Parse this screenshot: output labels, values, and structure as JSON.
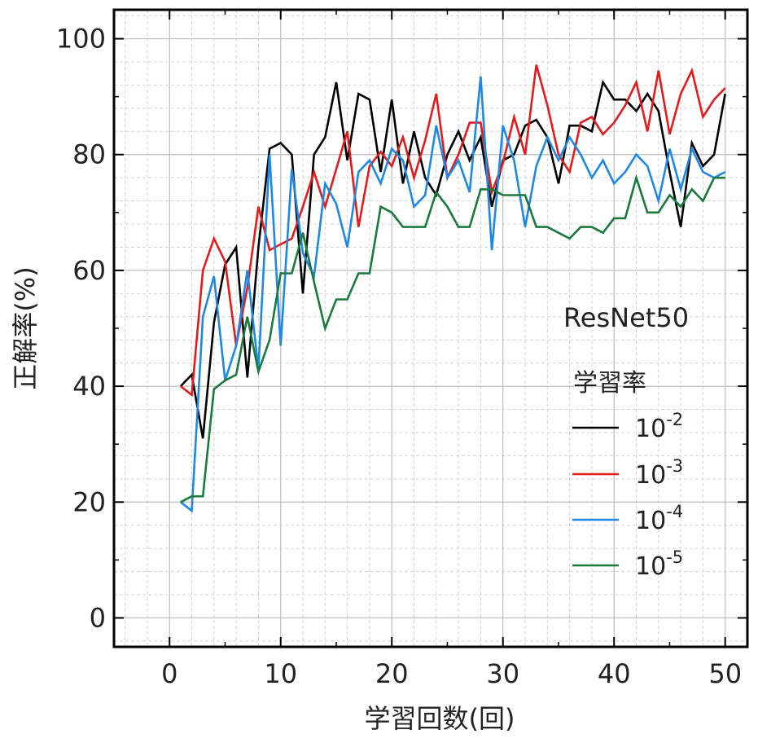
{
  "chart_data": {
    "type": "line",
    "title": "",
    "xlabel": "学習回数(回)",
    "ylabel": "正解率(%)",
    "xlim": [
      -5,
      52
    ],
    "ylim": [
      -5,
      105
    ],
    "x_ticks": [
      0,
      10,
      20,
      30,
      40,
      50
    ],
    "y_ticks": [
      0,
      20,
      40,
      60,
      80,
      100
    ],
    "x_tick_labels": [
      "0",
      "10",
      "20",
      "30",
      "40",
      "50"
    ],
    "y_tick_labels": [
      "0",
      "20",
      "40",
      "60",
      "80",
      "100"
    ],
    "grid": true,
    "legend_position": "right",
    "annotation": "ResNet50",
    "legend_title": "学習率",
    "x": [
      1,
      2,
      3,
      4,
      5,
      6,
      7,
      8,
      9,
      10,
      11,
      12,
      13,
      14,
      15,
      16,
      17,
      18,
      19,
      20,
      21,
      22,
      23,
      24,
      25,
      26,
      27,
      28,
      29,
      30,
      31,
      32,
      33,
      34,
      35,
      36,
      37,
      38,
      39,
      40,
      41,
      42,
      43,
      44,
      45,
      46,
      47,
      48,
      49,
      50
    ],
    "series": [
      {
        "name": "10-2",
        "base": "10",
        "exponent": "-2",
        "color": "#000000",
        "values": [
          40,
          42,
          31,
          51,
          61,
          64,
          41.5,
          64,
          81,
          82,
          80,
          56,
          80,
          83,
          92.5,
          79,
          90.5,
          89.5,
          77,
          89.5,
          75,
          84,
          76,
          73,
          80,
          84,
          79,
          83,
          71,
          79,
          80,
          85,
          86,
          83,
          75,
          85,
          85,
          84,
          92.5,
          89.5,
          89.5,
          87.5,
          90.5,
          87.5,
          77,
          67.5,
          82,
          78,
          80,
          90.5
        ]
      },
      {
        "name": "10-3",
        "base": "10",
        "exponent": "-3",
        "color": "#e41a1c",
        "values": [
          40,
          38.5,
          60,
          65.5,
          61.5,
          47,
          57,
          71,
          63.5,
          64.5,
          65.5,
          71,
          77,
          71,
          77.5,
          84,
          67.5,
          78,
          80.5,
          78,
          83,
          76,
          82.5,
          90.5,
          76,
          80,
          85.5,
          85.5,
          73.5,
          78.5,
          86.5,
          80,
          95.5,
          88.5,
          80,
          77,
          85.5,
          86.5,
          83.5,
          85.5,
          88.5,
          92.5,
          84,
          94.5,
          83.5,
          90.5,
          94.5,
          86.5,
          89.5,
          91.5
        ]
      },
      {
        "name": "10-4",
        "base": "10",
        "exponent": "-4",
        "color": "#1e88e5",
        "values": [
          20,
          18.5,
          52,
          59,
          41,
          47,
          60,
          43,
          80,
          47,
          77.5,
          63,
          59,
          75,
          71.5,
          64,
          77,
          79,
          75,
          81,
          79,
          71,
          73,
          85,
          76,
          79,
          73.5,
          93.5,
          63.5,
          85,
          79,
          67.5,
          78,
          83,
          79,
          83,
          80,
          76,
          79,
          75,
          77,
          80,
          78,
          72,
          81,
          74,
          81,
          77,
          76,
          77
        ]
      },
      {
        "name": "10-5",
        "base": "10",
        "exponent": "-5",
        "color": "#1a7a3c",
        "values": [
          20,
          21,
          21,
          39.5,
          41,
          42,
          52,
          42.5,
          48,
          59.5,
          59.5,
          66.5,
          58,
          50,
          55,
          55,
          59.5,
          59.5,
          71,
          70,
          67.5,
          67.5,
          67.5,
          73.5,
          71,
          67.5,
          67.5,
          74,
          74,
          73,
          73,
          73,
          67.5,
          67.5,
          66.5,
          65.5,
          67.5,
          67.5,
          66.5,
          69,
          69,
          76,
          70,
          70,
          73,
          71,
          74,
          72,
          76,
          76
        ]
      }
    ]
  }
}
